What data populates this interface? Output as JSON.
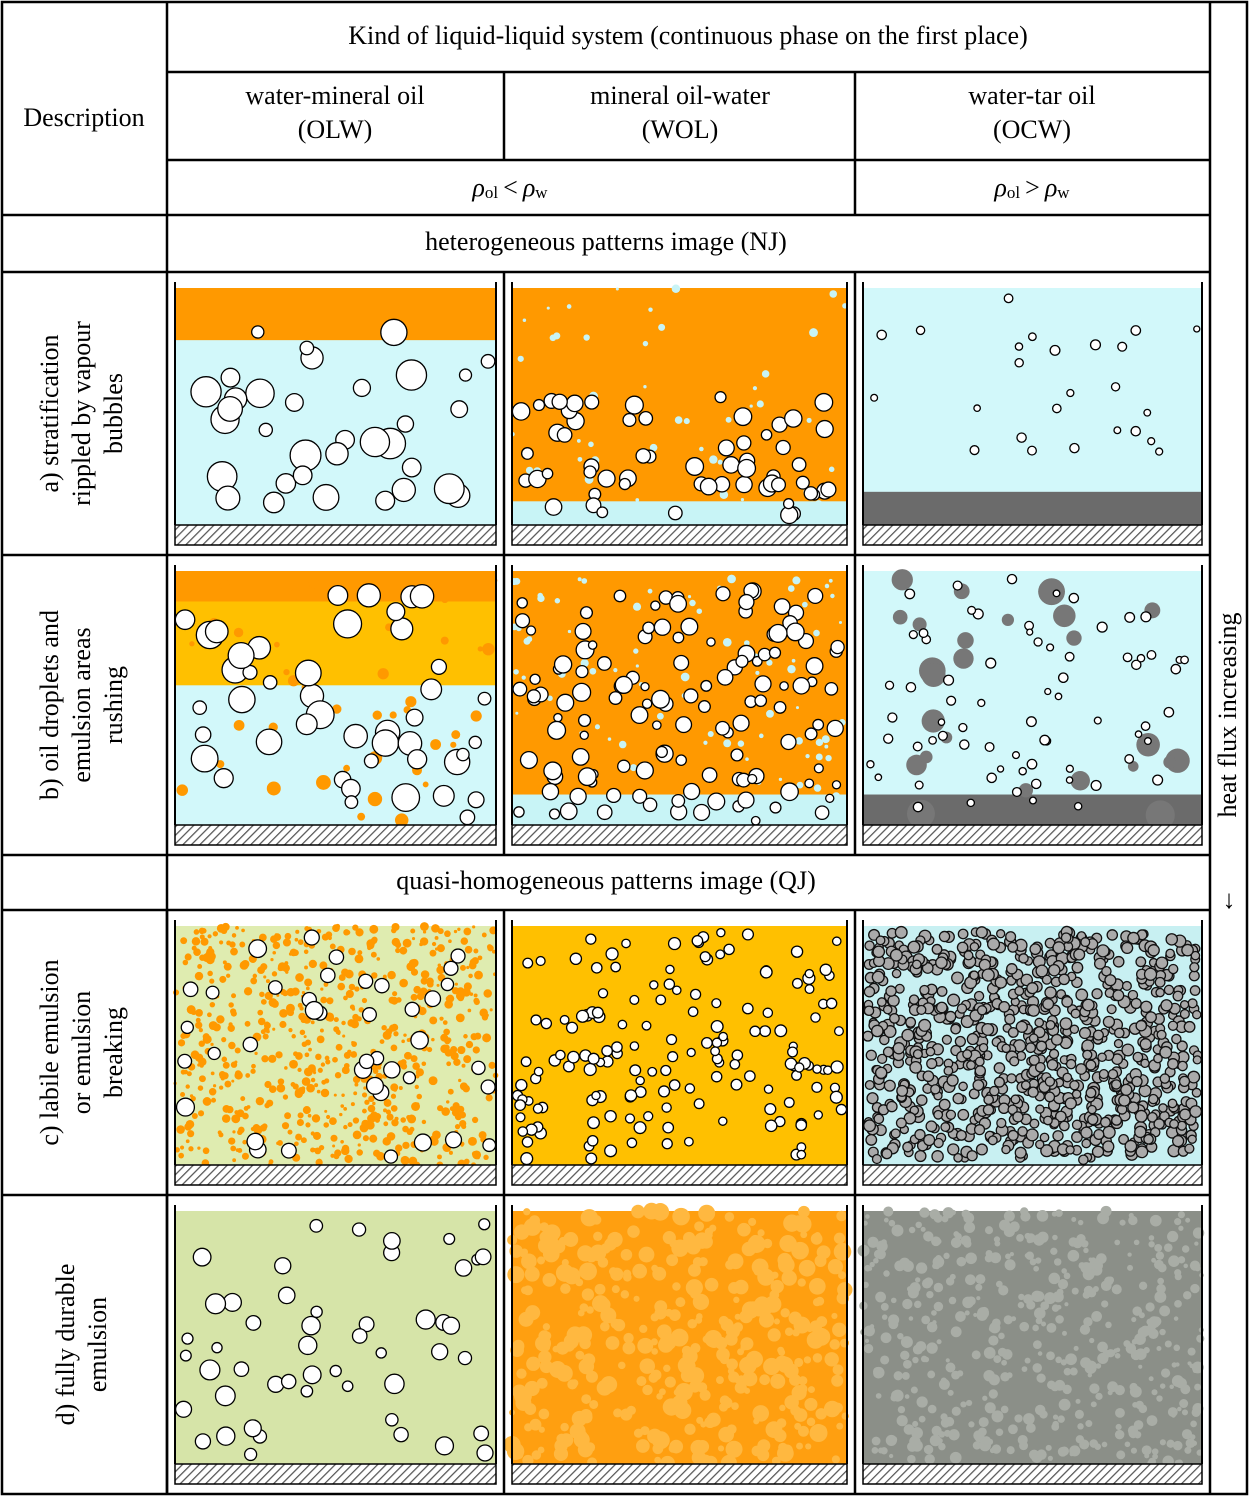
{
  "header": {
    "description": "Description",
    "kind": "Kind of liquid-liquid system (continuous phase on the first place)",
    "systems": [
      {
        "name": "water-mineral oil",
        "code": "(OLW)"
      },
      {
        "name": "mineral oil-water",
        "code": "(WOL)"
      },
      {
        "name": "water-tar oil",
        "code": "(OCW)"
      }
    ],
    "densities": [
      {
        "left": "ρ",
        "left_sub": "ol",
        "op": "<",
        "right": "ρ",
        "right_sub": "w"
      },
      {
        "left": "ρ",
        "left_sub": "ol",
        "op": ">",
        "right": "ρ",
        "right_sub": "w"
      }
    ]
  },
  "sections": [
    "heterogeneous patterns image (NJ)",
    "quasi-homogeneous patterns image (QJ)"
  ],
  "rows": [
    [
      "a) stratification",
      "rippled by vapour",
      "bubbles"
    ],
    [
      "b) oil droplets and",
      "emulsion areas",
      "rushing"
    ],
    [
      "c) labile emulsion",
      "or emulsion",
      "breaking"
    ],
    [
      "d) fully durable",
      "emulsion"
    ]
  ],
  "side": {
    "label": "heat flux increasing",
    "arrow": "↓"
  }
}
